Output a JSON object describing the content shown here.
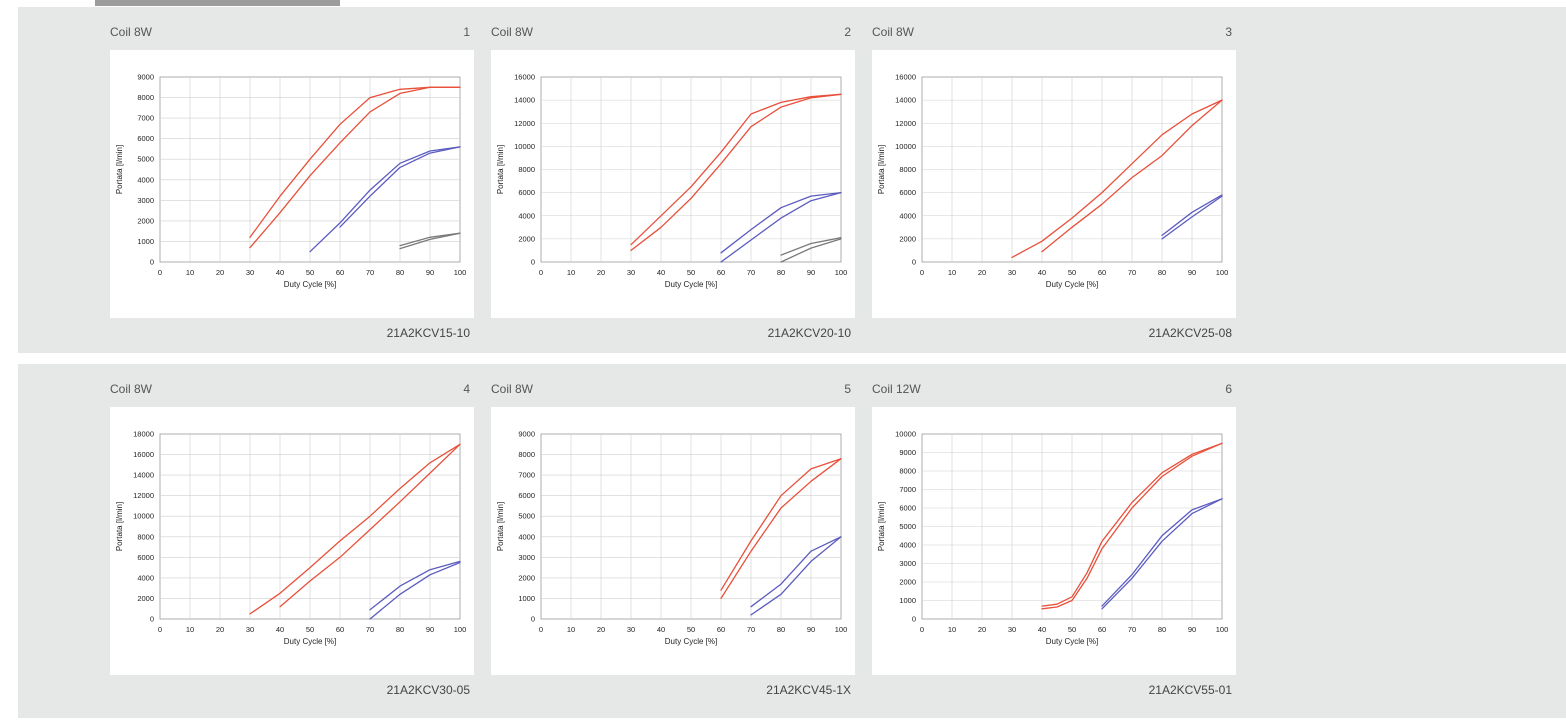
{
  "colors": {
    "red": "#e8503a",
    "blue": "#5b5bc0",
    "gray": "#7a7a7a",
    "band": "#e6e7e7",
    "grid": "#cfcfcf"
  },
  "charts": [
    {
      "number": "1",
      "coil": "Coil 8W",
      "model": "21A2KCV15-10",
      "chart_data": {
        "type": "line",
        "xlabel": "Duty Cycle [%]",
        "ylabel": "Portata [l/min]",
        "xlim": [
          0,
          100
        ],
        "ylim": [
          0,
          9000
        ],
        "yticks": [
          0,
          1000,
          2000,
          3000,
          4000,
          5000,
          6000,
          7000,
          8000,
          9000
        ],
        "xticks": [
          0,
          10,
          20,
          30,
          40,
          50,
          60,
          70,
          80,
          90,
          100
        ],
        "series": [
          {
            "color": "red",
            "x": [
              30,
              40,
              50,
              60,
              70,
              80,
              90,
              100
            ],
            "y": [
              1200,
              3200,
              5000,
              6700,
              8000,
              8400,
              8500,
              8500
            ]
          },
          {
            "color": "red",
            "x": [
              30,
              40,
              50,
              60,
              70,
              80,
              90,
              100
            ],
            "y": [
              700,
              2400,
              4200,
              5800,
              7300,
              8200,
              8500,
              8500
            ]
          },
          {
            "color": "blue",
            "x": [
              50,
              60,
              70,
              80,
              90,
              100
            ],
            "y": [
              500,
              1900,
              3500,
              4800,
              5400,
              5600
            ]
          },
          {
            "color": "blue",
            "x": [
              60,
              70,
              80,
              90,
              100
            ],
            "y": [
              1700,
              3200,
              4600,
              5300,
              5600
            ]
          },
          {
            "color": "gray",
            "x": [
              80,
              90,
              100
            ],
            "y": [
              800,
              1200,
              1400
            ]
          },
          {
            "color": "gray",
            "x": [
              80,
              90,
              100
            ],
            "y": [
              650,
              1100,
              1400
            ]
          }
        ]
      }
    },
    {
      "number": "2",
      "coil": "Coil 8W",
      "model": "21A2KCV20-10",
      "chart_data": {
        "type": "line",
        "xlabel": "Duty Cycle [%]",
        "ylabel": "Portata [l/min]",
        "xlim": [
          0,
          100
        ],
        "ylim": [
          0,
          16000
        ],
        "yticks": [
          0,
          2000,
          4000,
          6000,
          8000,
          10000,
          12000,
          14000,
          16000
        ],
        "xticks": [
          0,
          10,
          20,
          30,
          40,
          50,
          60,
          70,
          80,
          90,
          100
        ],
        "series": [
          {
            "color": "red",
            "x": [
              30,
              40,
              50,
              60,
              70,
              80,
              90,
              100
            ],
            "y": [
              1500,
              4000,
              6500,
              9500,
              12800,
              13800,
              14300,
              14500
            ]
          },
          {
            "color": "red",
            "x": [
              30,
              40,
              50,
              60,
              70,
              80,
              90,
              100
            ],
            "y": [
              1000,
              3000,
              5500,
              8500,
              11700,
              13400,
              14200,
              14500
            ]
          },
          {
            "color": "blue",
            "x": [
              60,
              70,
              80,
              90,
              100
            ],
            "y": [
              800,
              2800,
              4700,
              5700,
              6000
            ]
          },
          {
            "color": "blue",
            "x": [
              60,
              70,
              80,
              90,
              100
            ],
            "y": [
              0,
              1900,
              3800,
              5300,
              6000
            ]
          },
          {
            "color": "gray",
            "x": [
              80,
              90,
              100
            ],
            "y": [
              600,
              1600,
              2100
            ]
          },
          {
            "color": "gray",
            "x": [
              80,
              90,
              100
            ],
            "y": [
              0,
              1200,
              2000
            ]
          }
        ]
      }
    },
    {
      "number": "3",
      "coil": "Coil 8W",
      "model": "21A2KCV25-08",
      "chart_data": {
        "type": "line",
        "xlabel": "Duty Cycle [%]",
        "ylabel": "Portata [l/min]",
        "xlim": [
          0,
          100
        ],
        "ylim": [
          0,
          16000
        ],
        "yticks": [
          0,
          2000,
          4000,
          6000,
          8000,
          10000,
          12000,
          14000,
          16000
        ],
        "xticks": [
          0,
          10,
          20,
          30,
          40,
          50,
          60,
          70,
          80,
          90,
          100
        ],
        "series": [
          {
            "color": "red",
            "x": [
              30,
              40,
              50,
              60,
              70,
              80,
              90,
              100
            ],
            "y": [
              400,
              1800,
              3800,
              6000,
              8500,
              11000,
              12800,
              14000
            ]
          },
          {
            "color": "red",
            "x": [
              40,
              50,
              60,
              70,
              80,
              90,
              100
            ],
            "y": [
              900,
              3000,
              5000,
              7300,
              9200,
              11800,
              14000
            ]
          },
          {
            "color": "blue",
            "x": [
              80,
              90,
              100
            ],
            "y": [
              2300,
              4300,
              5800
            ]
          },
          {
            "color": "blue",
            "x": [
              80,
              90,
              100
            ],
            "y": [
              2000,
              3900,
              5700
            ]
          }
        ]
      }
    },
    {
      "number": "4",
      "coil": "Coil 8W",
      "model": "21A2KCV30-05",
      "chart_data": {
        "type": "line",
        "xlabel": "Duty Cycle [%]",
        "ylabel": "Portata [l/min]",
        "xlim": [
          0,
          100
        ],
        "ylim": [
          0,
          18000
        ],
        "yticks": [
          0,
          2000,
          4000,
          6000,
          8000,
          10000,
          12000,
          14000,
          16000,
          18000
        ],
        "xticks": [
          0,
          10,
          20,
          30,
          40,
          50,
          60,
          70,
          80,
          90,
          100
        ],
        "series": [
          {
            "color": "red",
            "x": [
              30,
              40,
              50,
              60,
              70,
              80,
              90,
              100
            ],
            "y": [
              500,
              2500,
              5000,
              7600,
              10000,
              12700,
              15200,
              17000
            ]
          },
          {
            "color": "red",
            "x": [
              40,
              50,
              60,
              70,
              80,
              90,
              100
            ],
            "y": [
              1200,
              3700,
              6000,
              8700,
              11400,
              14200,
              17000
            ]
          },
          {
            "color": "blue",
            "x": [
              70,
              80,
              90,
              100
            ],
            "y": [
              900,
              3200,
              4800,
              5600
            ]
          },
          {
            "color": "blue",
            "x": [
              70,
              80,
              90,
              100
            ],
            "y": [
              0,
              2400,
              4300,
              5500
            ]
          }
        ]
      }
    },
    {
      "number": "5",
      "coil": "Coil 8W",
      "model": "21A2KCV45-1X",
      "chart_data": {
        "type": "line",
        "xlabel": "Duty Cycle [%]",
        "ylabel": "Portata [l/min]",
        "xlim": [
          0,
          100
        ],
        "ylim": [
          0,
          9000
        ],
        "yticks": [
          0,
          1000,
          2000,
          3000,
          4000,
          5000,
          6000,
          7000,
          8000,
          9000
        ],
        "xticks": [
          0,
          10,
          20,
          30,
          40,
          50,
          60,
          70,
          80,
          90,
          100
        ],
        "series": [
          {
            "color": "red",
            "x": [
              60,
              70,
              80,
              90,
              100
            ],
            "y": [
              1400,
              3800,
              6000,
              7300,
              7800
            ]
          },
          {
            "color": "red",
            "x": [
              60,
              70,
              80,
              90,
              100
            ],
            "y": [
              1000,
              3300,
              5400,
              6700,
              7800
            ]
          },
          {
            "color": "blue",
            "x": [
              70,
              80,
              90,
              100
            ],
            "y": [
              600,
              1700,
              3300,
              4000
            ]
          },
          {
            "color": "blue",
            "x": [
              70,
              80,
              90,
              100
            ],
            "y": [
              200,
              1200,
              2800,
              4000
            ]
          }
        ]
      }
    },
    {
      "number": "6",
      "coil": "Coil 12W",
      "model": "21A2KCV55-01",
      "chart_data": {
        "type": "line",
        "xlabel": "Duty Cycle [%]",
        "ylabel": "Portata [l/min]",
        "xlim": [
          0,
          100
        ],
        "ylim": [
          0,
          10000
        ],
        "yticks": [
          0,
          1000,
          2000,
          3000,
          4000,
          5000,
          6000,
          7000,
          8000,
          9000,
          10000
        ],
        "xticks": [
          0,
          10,
          20,
          30,
          40,
          50,
          60,
          70,
          80,
          90,
          100
        ],
        "series": [
          {
            "color": "red",
            "x": [
              40,
              45,
              50,
              55,
              60,
              70,
              80,
              90,
              100
            ],
            "y": [
              700,
              800,
              1200,
              2500,
              4200,
              6300,
              7900,
              8900,
              9500
            ]
          },
          {
            "color": "red",
            "x": [
              40,
              45,
              50,
              55,
              60,
              70,
              80,
              90,
              100
            ],
            "y": [
              550,
              650,
              1000,
              2200,
              3800,
              6000,
              7700,
              8800,
              9500
            ]
          },
          {
            "color": "blue",
            "x": [
              60,
              70,
              80,
              90,
              100
            ],
            "y": [
              700,
              2400,
              4500,
              5900,
              6500
            ]
          },
          {
            "color": "blue",
            "x": [
              60,
              70,
              80,
              90,
              100
            ],
            "y": [
              550,
              2200,
              4200,
              5700,
              6500
            ]
          }
        ]
      }
    }
  ]
}
